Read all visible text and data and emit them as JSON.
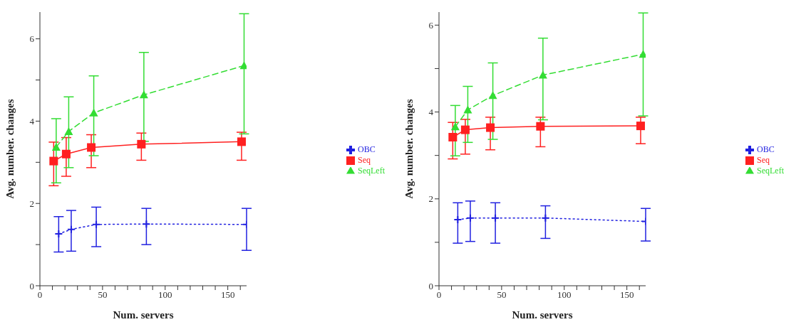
{
  "chart_data": [
    {
      "type": "line",
      "xlabel": "Num. servers",
      "ylabel": "Avg. number. changes",
      "xlim": [
        0,
        165
      ],
      "ylim": [
        0,
        6.65
      ],
      "xticks": [
        0,
        {
          "value": 10,
          "label": null
        },
        {
          "value": 20,
          "label": null
        },
        {
          "value": 30,
          "label": null
        },
        {
          "value": 40,
          "label": null
        },
        50,
        {
          "value": 60,
          "label": null
        },
        {
          "value": 70,
          "label": null
        },
        {
          "value": 80,
          "label": null
        },
        {
          "value": 90,
          "label": null
        },
        100,
        {
          "value": 110,
          "label": null
        },
        {
          "value": 120,
          "label": null
        },
        {
          "value": 130,
          "label": null
        },
        {
          "value": 140,
          "label": null
        },
        150,
        {
          "value": 160,
          "label": null
        }
      ],
      "yticks": [
        0,
        {
          "value": 1,
          "label": null
        },
        2,
        {
          "value": 3,
          "label": null
        },
        4,
        {
          "value": 5,
          "label": null
        },
        6
      ],
      "legend": "right",
      "series": [
        {
          "name": "Seq",
          "color": "#ff2020",
          "line_style": "solid",
          "marker": "square",
          "x": [
            11,
            21,
            41,
            81,
            161
          ],
          "values": [
            3.03,
            3.2,
            3.36,
            3.44,
            3.5
          ],
          "errors": [
            [
              2.43,
              3.49
            ],
            [
              2.66,
              3.6
            ],
            [
              2.87,
              3.67
            ],
            [
              3.05,
              3.71
            ],
            [
              3.05,
              3.73
            ]
          ]
        },
        {
          "name": "SeqLeft",
          "color": "#33dd33",
          "line_style": "dashed",
          "marker": "triangle",
          "x": [
            13,
            23,
            43,
            83,
            163
          ],
          "values": [
            3.37,
            3.75,
            4.2,
            4.64,
            5.35
          ],
          "errors": [
            [
              2.5,
              4.06
            ],
            [
              2.87,
              4.59
            ],
            [
              3.16,
              5.1
            ],
            [
              3.51,
              5.67
            ],
            [
              3.69,
              6.61
            ]
          ]
        },
        {
          "name": "OBC",
          "color": "#2020e0",
          "line_style": "dotted",
          "marker": "cross",
          "x": [
            15,
            25,
            45,
            85,
            165
          ],
          "values": [
            1.26,
            1.37,
            1.49,
            1.5,
            1.49
          ],
          "errors": [
            [
              0.82,
              1.68
            ],
            [
              0.84,
              1.83
            ],
            [
              0.95,
              1.91
            ],
            [
              1.0,
              1.88
            ],
            [
              0.86,
              1.88
            ]
          ]
        }
      ]
    },
    {
      "type": "line",
      "xlabel": "Num. servers",
      "ylabel": "Avg. number. changes",
      "xlim": [
        0,
        165
      ],
      "ylim": [
        0,
        6.3
      ],
      "xticks": [
        0,
        {
          "value": 10,
          "label": null
        },
        {
          "value": 20,
          "label": null
        },
        {
          "value": 30,
          "label": null
        },
        {
          "value": 40,
          "label": null
        },
        50,
        {
          "value": 60,
          "label": null
        },
        {
          "value": 70,
          "label": null
        },
        {
          "value": 80,
          "label": null
        },
        {
          "value": 90,
          "label": null
        },
        100,
        {
          "value": 110,
          "label": null
        },
        {
          "value": 120,
          "label": null
        },
        {
          "value": 130,
          "label": null
        },
        {
          "value": 140,
          "label": null
        },
        150,
        {
          "value": 160,
          "label": null
        }
      ],
      "yticks": [
        0,
        {
          "value": 1,
          "label": null
        },
        2,
        {
          "value": 3,
          "label": null
        },
        4,
        {
          "value": 5,
          "label": null
        },
        6
      ],
      "legend": "right",
      "series": [
        {
          "name": "Seq",
          "color": "#ff2020",
          "line_style": "solid",
          "marker": "square",
          "x": [
            11,
            21,
            41,
            81,
            161
          ],
          "values": [
            3.42,
            3.59,
            3.64,
            3.67,
            3.68
          ],
          "errors": [
            [
              2.92,
              3.76
            ],
            [
              3.03,
              3.83
            ],
            [
              3.13,
              3.88
            ],
            [
              3.2,
              3.88
            ],
            [
              3.27,
              3.88
            ]
          ]
        },
        {
          "name": "SeqLeft",
          "color": "#33dd33",
          "line_style": "dashed",
          "marker": "triangle",
          "x": [
            13,
            23,
            43,
            83,
            163
          ],
          "values": [
            3.66,
            4.05,
            4.38,
            4.85,
            5.33
          ],
          "errors": [
            [
              2.99,
              4.15
            ],
            [
              3.3,
              4.59
            ],
            [
              3.37,
              5.13
            ],
            [
              3.82,
              5.7
            ],
            [
              3.91,
              6.28
            ]
          ]
        },
        {
          "name": "OBC",
          "color": "#2020e0",
          "line_style": "dotted",
          "marker": "cross",
          "x": [
            15,
            25,
            45,
            85,
            165
          ],
          "values": [
            1.52,
            1.56,
            1.56,
            1.56,
            1.48
          ],
          "errors": [
            [
              0.98,
              1.91
            ],
            [
              1.02,
              1.95
            ],
            [
              0.98,
              1.91
            ],
            [
              1.09,
              1.84
            ],
            [
              1.03,
              1.78
            ]
          ]
        }
      ]
    }
  ]
}
